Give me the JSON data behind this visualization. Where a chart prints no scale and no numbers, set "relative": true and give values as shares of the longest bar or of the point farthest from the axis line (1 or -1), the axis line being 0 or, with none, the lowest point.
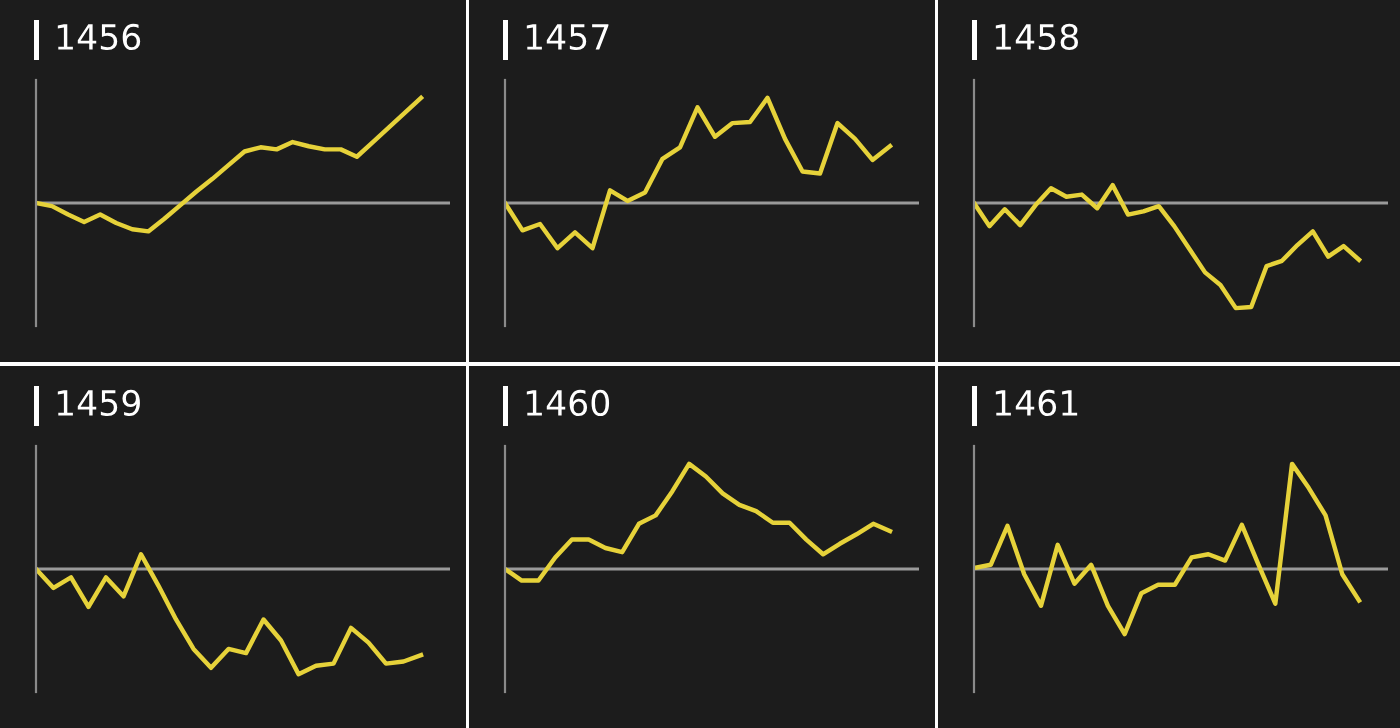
{
  "chart_data": [
    {
      "type": "line",
      "title": "1456",
      "relative": true,
      "categories": [
        null,
        null,
        null,
        null,
        null,
        null,
        null,
        null,
        null,
        null,
        null,
        null,
        null,
        null,
        null,
        null,
        null,
        null,
        null,
        null,
        null,
        null,
        null,
        null,
        null
      ],
      "series": [
        {
          "color": "#e6d23a",
          "values": [
            0,
            -0.03,
            -0.11,
            -0.18,
            -0.11,
            -0.19,
            -0.25,
            -0.27,
            -0.15,
            -0.02,
            0.11,
            0.23,
            0.36,
            0.49,
            0.53,
            0.51,
            0.58,
            0.54,
            0.51,
            0.51,
            0.44,
            0.58,
            0.72,
            0.86,
            1.0
          ]
        }
      ]
    },
    {
      "type": "line",
      "title": "1457",
      "relative": true,
      "categories": [
        null,
        null,
        null,
        null,
        null,
        null,
        null,
        null,
        null,
        null,
        null,
        null,
        null,
        null,
        null,
        null,
        null,
        null,
        null,
        null,
        null,
        null,
        null
      ],
      "series": [
        {
          "color": "#e6d23a",
          "values": [
            0,
            -0.26,
            -0.2,
            -0.43,
            -0.28,
            -0.43,
            0.12,
            0.02,
            0.1,
            0.42,
            0.53,
            0.91,
            0.63,
            0.76,
            0.77,
            1.0,
            0.61,
            0.3,
            0.28,
            0.76,
            0.61,
            0.41,
            0.54
          ]
        }
      ]
    },
    {
      "type": "line",
      "title": "1458",
      "relative": true,
      "categories": [
        null,
        null,
        null,
        null,
        null,
        null,
        null,
        null,
        null,
        null,
        null,
        null,
        null,
        null,
        null,
        null,
        null,
        null,
        null,
        null,
        null,
        null,
        null,
        null,
        null,
        null
      ],
      "series": [
        {
          "color": "#e6d23a",
          "values": [
            0,
            -0.22,
            -0.06,
            -0.21,
            -0.02,
            0.14,
            0.06,
            0.08,
            -0.05,
            0.17,
            -0.11,
            -0.08,
            -0.03,
            -0.22,
            -0.44,
            -0.66,
            -0.78,
            -1.0,
            -0.99,
            -0.6,
            -0.55,
            -0.4,
            -0.27,
            -0.51,
            -0.41,
            -0.54
          ]
        }
      ]
    },
    {
      "type": "line",
      "title": "1459",
      "relative": true,
      "categories": [
        null,
        null,
        null,
        null,
        null,
        null,
        null,
        null,
        null,
        null,
        null,
        null,
        null,
        null,
        null,
        null,
        null,
        null,
        null,
        null,
        null,
        null,
        null
      ],
      "series": [
        {
          "color": "#e6d23a",
          "values": [
            0,
            -0.18,
            -0.08,
            -0.36,
            -0.08,
            -0.26,
            0.14,
            -0.16,
            -0.48,
            -0.76,
            -0.94,
            -0.76,
            -0.8,
            -0.48,
            -0.68,
            -1.0,
            -0.92,
            -0.9,
            -0.56,
            -0.7,
            -0.9,
            -0.88,
            -0.82
          ]
        }
      ]
    },
    {
      "type": "line",
      "title": "1460",
      "relative": true,
      "categories": [
        null,
        null,
        null,
        null,
        null,
        null,
        null,
        null,
        null,
        null,
        null,
        null,
        null,
        null,
        null,
        null,
        null,
        null,
        null,
        null,
        null,
        null,
        null,
        null
      ],
      "series": [
        {
          "color": "#e6d23a",
          "values": [
            0,
            -0.11,
            -0.11,
            0.11,
            0.28,
            0.28,
            0.2,
            0.16,
            0.43,
            0.51,
            0.74,
            1.0,
            0.88,
            0.72,
            0.61,
            0.55,
            0.44,
            0.44,
            0.28,
            0.14,
            0.24,
            0.33,
            0.43,
            0.36
          ]
        }
      ]
    },
    {
      "type": "line",
      "title": "1461",
      "relative": true,
      "categories": [
        null,
        null,
        null,
        null,
        null,
        null,
        null,
        null,
        null,
        null,
        null,
        null,
        null,
        null,
        null,
        null,
        null,
        null,
        null,
        null,
        null,
        null,
        null,
        null
      ],
      "series": [
        {
          "color": "#e6d23a",
          "values": [
            0.01,
            0.04,
            0.41,
            -0.05,
            -0.35,
            0.23,
            -0.14,
            0.04,
            -0.35,
            -0.62,
            -0.23,
            -0.15,
            -0.15,
            0.11,
            0.14,
            0.08,
            0.42,
            0.04,
            -0.33,
            1.0,
            0.77,
            0.51,
            -0.05,
            -0.3
          ]
        }
      ]
    }
  ]
}
